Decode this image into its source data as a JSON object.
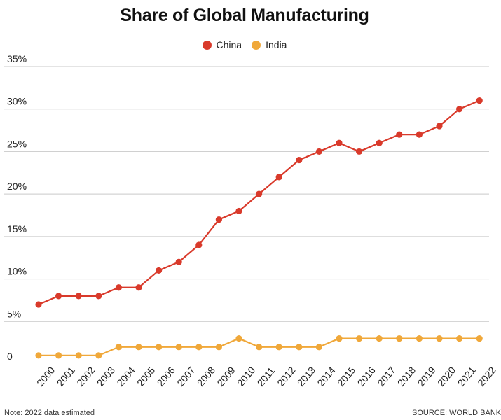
{
  "chart_data": {
    "type": "line",
    "title": "Share of Global Manufacturing",
    "categories": [
      "2000",
      "2001",
      "2002",
      "2003",
      "2004",
      "2005",
      "2006",
      "2007",
      "2008",
      "2009",
      "2010",
      "2011",
      "2012",
      "2013",
      "2014",
      "2015",
      "2016",
      "2017",
      "2018",
      "2019",
      "2020",
      "2021",
      "2022"
    ],
    "series": [
      {
        "name": "China",
        "color": "#d93a2b",
        "values": [
          7,
          8,
          8,
          8,
          9,
          9,
          11,
          12,
          14,
          17,
          18,
          20,
          22,
          24,
          25,
          26,
          25,
          26,
          27,
          27,
          28,
          30,
          31
        ]
      },
      {
        "name": "India",
        "color": "#f0a83a",
        "values": [
          1,
          1,
          1,
          1,
          2,
          2,
          2,
          2,
          2,
          2,
          3,
          2,
          2,
          2,
          2,
          3,
          3,
          3,
          3,
          3,
          3,
          3,
          3
        ]
      }
    ],
    "yticks": [
      "0",
      "5%",
      "10%",
      "15%",
      "20%",
      "25%",
      "30%",
      "35%"
    ],
    "ylim": [
      0,
      35
    ],
    "grid": true,
    "legend_position": "top-center"
  },
  "footer": {
    "note": "Note: 2022 data estimated",
    "source": "SOURCE: WORLD BANK"
  }
}
